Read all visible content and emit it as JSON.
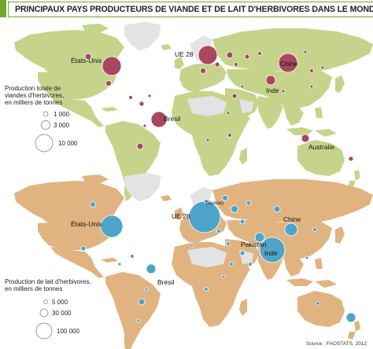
{
  "title": "PRINCIPAUX PAYS PRODUCTEURS DE VIANDE ET DE LAIT D'HERBIVORES DANS LE MONDE",
  "source": "Source : FAOSTATS, 2012",
  "colors": {
    "land_meat": "#c5d48a",
    "land_milk": "#e0b380",
    "land_gray": "#e3e3e3",
    "meat_bubble": "#a8485e",
    "milk_bubble": "#4ea4c8",
    "accent": "#6fa62f"
  },
  "meat_map": {
    "legend": {
      "title_lines": [
        "Production totale de",
        "viandes d'herbivores,",
        "en milliers de tonnes"
      ],
      "items": [
        {
          "label": "1 000",
          "value": 1000
        },
        {
          "label": "3 000",
          "value": 3000
        },
        {
          "label": "10 000",
          "value": 10000
        }
      ]
    },
    "labels": {
      "usa": "États-Unis",
      "eu": "UE 28",
      "china": "Chine",
      "india": "Inde",
      "brazil": "Brésil",
      "australia": "Australie"
    }
  },
  "milk_map": {
    "legend": {
      "title_lines": [
        "Production de lait d'herbivores,",
        "en milliers de tonnes"
      ],
      "items": [
        {
          "label": "5 000",
          "value": 5000
        },
        {
          "label": "30 000",
          "value": 30000
        },
        {
          "label": "100 000",
          "value": 100000
        }
      ]
    },
    "labels": {
      "usa": "États-Unis",
      "eu": "UE 28",
      "switzerland": "(Suisse)",
      "china": "Chine",
      "pakistan": "Pakistan",
      "india": "Inde",
      "brazil": "Brésil"
    }
  }
}
